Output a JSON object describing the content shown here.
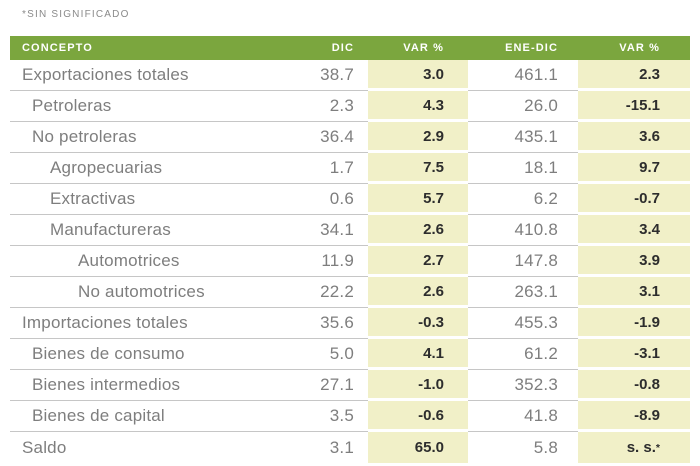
{
  "note": "*SIN SIGNIFICADO",
  "colors": {
    "header_green": "#7BA63E",
    "var_column_cream": "#F1F0C8",
    "body_text_gray": "#7e7e7e",
    "var_value_dark": "#2d2d2d",
    "row_separator": "#c6c6c6"
  },
  "chart_data": {
    "type": "table",
    "title": "",
    "columns": [
      "CONCEPTO",
      "DIC",
      "VAR %",
      "ENE-DIC",
      "VAR %"
    ],
    "rows": [
      {
        "concepto": "Exportaciones totales",
        "indent": 0,
        "dic": "38.7",
        "var_dic": "3.0",
        "ene_dic": "461.1",
        "var_ene_dic": "2.3"
      },
      {
        "concepto": "Petroleras",
        "indent": 1,
        "dic": "2.3",
        "var_dic": "4.3",
        "ene_dic": "26.0",
        "var_ene_dic": "-15.1"
      },
      {
        "concepto": "No petroleras",
        "indent": 1,
        "dic": "36.4",
        "var_dic": "2.9",
        "ene_dic": "435.1",
        "var_ene_dic": "3.6"
      },
      {
        "concepto": "Agropecuarias",
        "indent": 2,
        "dic": "1.7",
        "var_dic": "7.5",
        "ene_dic": "18.1",
        "var_ene_dic": "9.7"
      },
      {
        "concepto": "Extractivas",
        "indent": 2,
        "dic": "0.6",
        "var_dic": "5.7",
        "ene_dic": "6.2",
        "var_ene_dic": "-0.7"
      },
      {
        "concepto": "Manufactureras",
        "indent": 2,
        "dic": "34.1",
        "var_dic": "2.6",
        "ene_dic": "410.8",
        "var_ene_dic": "3.4"
      },
      {
        "concepto": "Automotrices",
        "indent": 3,
        "dic": "11.9",
        "var_dic": "2.7",
        "ene_dic": "147.8",
        "var_ene_dic": "3.9"
      },
      {
        "concepto": "No automotrices",
        "indent": 3,
        "dic": "22.2",
        "var_dic": "2.6",
        "ene_dic": "263.1",
        "var_ene_dic": "3.1"
      },
      {
        "concepto": "Importaciones totales",
        "indent": 0,
        "dic": "35.6",
        "var_dic": "-0.3",
        "ene_dic": "455.3",
        "var_ene_dic": "-1.9"
      },
      {
        "concepto": "Bienes de consumo",
        "indent": 1,
        "dic": "5.0",
        "var_dic": "4.1",
        "ene_dic": "61.2",
        "var_ene_dic": "-3.1"
      },
      {
        "concepto": "Bienes intermedios",
        "indent": 1,
        "dic": "27.1",
        "var_dic": "-1.0",
        "ene_dic": "352.3",
        "var_ene_dic": "-0.8"
      },
      {
        "concepto": "Bienes de capital",
        "indent": 1,
        "dic": "3.5",
        "var_dic": "-0.6",
        "ene_dic": "41.8",
        "var_ene_dic": "-8.9"
      },
      {
        "concepto": "Saldo",
        "indent": 0,
        "dic": "3.1",
        "var_dic": "65.0",
        "ene_dic": "5.8",
        "var_ene_dic": "s. s.*"
      }
    ]
  }
}
